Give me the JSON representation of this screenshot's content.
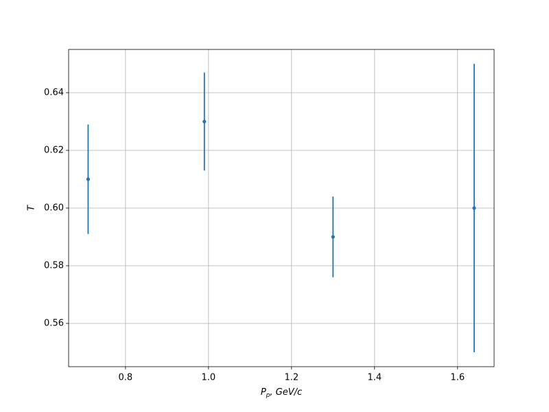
{
  "chart_data": {
    "type": "errorbar",
    "xlabel": {
      "main": "P",
      "sub": "p",
      "rest": ", GeV/c"
    },
    "ylabel": "T",
    "x": [
      0.71,
      0.99,
      1.3,
      1.64
    ],
    "series": [
      {
        "color": "#1f77b4",
        "values": [
          0.61,
          0.63,
          0.59,
          0.6
        ],
        "errors": [
          0.019,
          0.017,
          0.014,
          0.05
        ]
      }
    ],
    "xlim": [
      0.663,
      1.688
    ],
    "ylim": [
      0.545,
      0.655
    ],
    "xticks": [
      0.8,
      {
        "value": 1,
        "label": "1.0"
      },
      1.2,
      1.4,
      1.6
    ],
    "yticks": [
      0.56,
      0.58,
      {
        "value": 0.6,
        "label": "0.60"
      },
      0.62,
      0.64
    ],
    "grid": true
  }
}
